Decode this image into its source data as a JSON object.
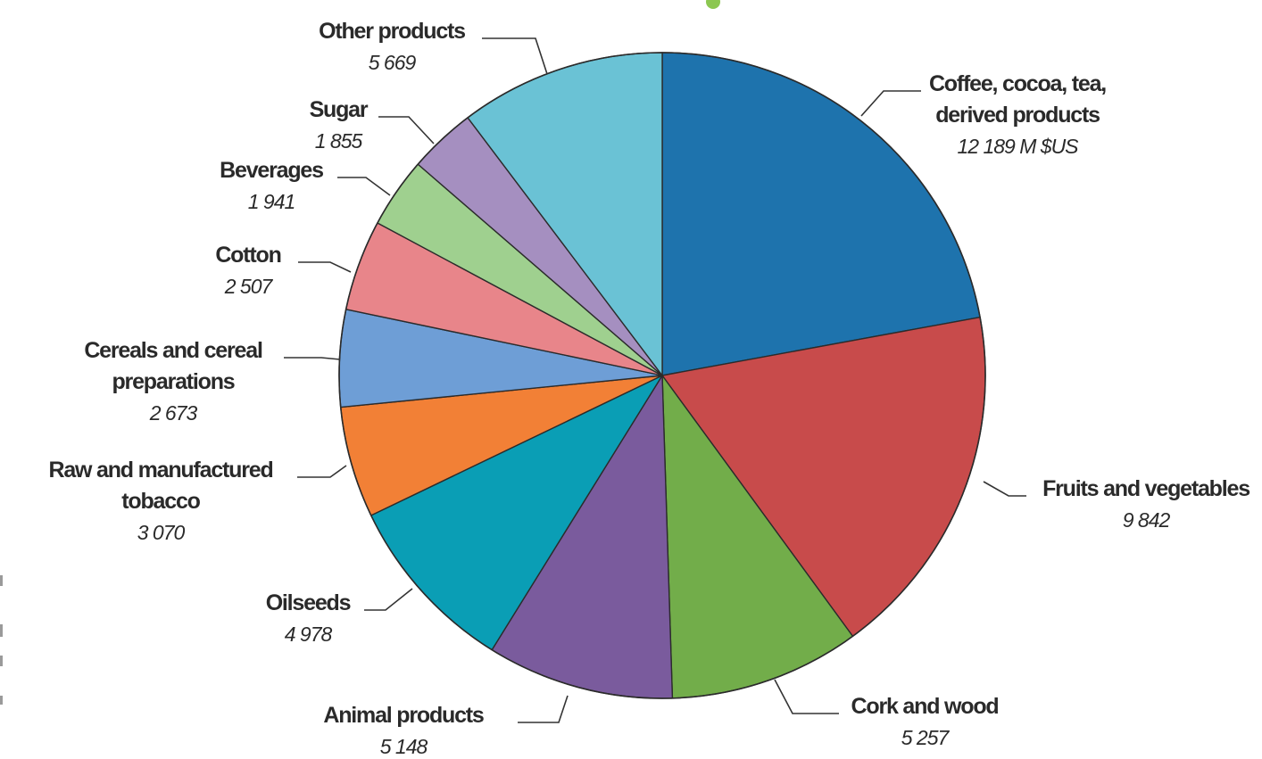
{
  "chart_data": {
    "type": "pie",
    "unit": "M $US",
    "colors": {
      "coffee": "#1e73ad",
      "fruits": "#c84b4b",
      "cork": "#72ad4a",
      "animal": "#7a5b9d",
      "oilseeds": "#0a9eb5",
      "tobacco": "#f28036",
      "cereals": "#6e9ed6",
      "cotton": "#e8858a",
      "beverages": "#9fd08f",
      "sugar": "#a58fc0",
      "other": "#6ac2d5"
    },
    "slices": [
      {
        "key": "coffee",
        "label_lines": [
          "Coffee, cocoa, tea,",
          "derived products"
        ],
        "value": 12189,
        "value_label": "12 189 M $US"
      },
      {
        "key": "fruits",
        "label_lines": [
          "Fruits and vegetables"
        ],
        "value": 9842,
        "value_label": "9 842"
      },
      {
        "key": "cork",
        "label_lines": [
          "Cork and wood"
        ],
        "value": 5257,
        "value_label": "5 257"
      },
      {
        "key": "animal",
        "label_lines": [
          "Animal products"
        ],
        "value": 5148,
        "value_label": "5 148"
      },
      {
        "key": "oilseeds",
        "label_lines": [
          "Oilseeds"
        ],
        "value": 4978,
        "value_label": "4 978"
      },
      {
        "key": "tobacco",
        "label_lines": [
          "Raw and manufactured",
          "tobacco"
        ],
        "value": 3070,
        "value_label": "3 070"
      },
      {
        "key": "cereals",
        "label_lines": [
          "Cereals and cereal",
          "preparations"
        ],
        "value": 2673,
        "value_label": "2 673"
      },
      {
        "key": "cotton",
        "label_lines": [
          "Cotton"
        ],
        "value": 2507,
        "value_label": "2 507"
      },
      {
        "key": "beverages",
        "label_lines": [
          "Beverages"
        ],
        "value": 1941,
        "value_label": "1 941"
      },
      {
        "key": "sugar",
        "label_lines": [
          "Sugar"
        ],
        "value": 1855,
        "value_label": "1 855"
      },
      {
        "key": "other",
        "label_lines": [
          "Other products"
        ],
        "value": 5669,
        "value_label": "5 669"
      }
    ]
  }
}
